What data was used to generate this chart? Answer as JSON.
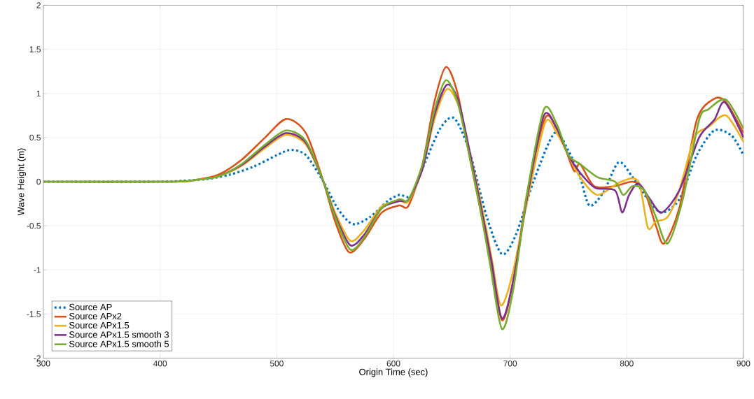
{
  "chart_data": {
    "type": "line",
    "xlabel": "Origin Time (sec)",
    "ylabel": "Wave Height (m)",
    "xlim": [
      300,
      900
    ],
    "ylim": [
      -2,
      2
    ],
    "xticks": [
      300,
      400,
      500,
      600,
      700,
      800,
      900
    ],
    "yticks": [
      -2,
      -1.5,
      -1,
      -0.5,
      0,
      0.5,
      1,
      1.5,
      2
    ],
    "grid": true,
    "legend": "bottom left",
    "series": [
      {
        "name": "Source AP",
        "color": "#0072bd",
        "line_style": "dotted",
        "x": [
          300,
          400,
          420,
          440,
          460,
          480,
          500,
          512,
          525,
          540,
          552,
          565,
          580,
          595,
          605,
          615,
          625,
          640,
          652,
          665,
          680,
          693,
          705,
          720,
          738,
          750,
          760,
          768,
          780,
          793,
          805,
          818,
          830,
          845,
          860,
          875,
          890,
          900
        ],
        "values": [
          0,
          0,
          0.01,
          0.03,
          0.08,
          0.17,
          0.3,
          0.36,
          0.3,
          0,
          -0.3,
          -0.48,
          -0.4,
          -0.22,
          -0.15,
          -0.16,
          0.15,
          0.6,
          0.72,
          0.35,
          -0.4,
          -0.82,
          -0.6,
          0,
          0.55,
          0.35,
          0.05,
          -0.27,
          -0.12,
          0.22,
          0.05,
          -0.2,
          -0.35,
          -0.2,
          0.3,
          0.58,
          0.52,
          0.3
        ]
      },
      {
        "name": "Source APx2",
        "color": "#d95319",
        "line_style": "solid",
        "x": [
          300,
          410,
          430,
          450,
          470,
          490,
          508,
          525,
          540,
          550,
          562,
          575,
          590,
          605,
          613,
          625,
          635,
          645,
          655,
          665,
          675,
          683,
          693,
          703,
          715,
          730,
          740,
          748,
          755,
          760,
          772,
          790,
          805,
          815,
          825,
          832,
          845,
          860,
          875,
          885,
          900
        ],
        "values": [
          0,
          0,
          0.02,
          0.08,
          0.25,
          0.5,
          0.71,
          0.55,
          0,
          -0.45,
          -0.8,
          -0.65,
          -0.35,
          -0.27,
          -0.27,
          0.2,
          0.9,
          1.3,
          1.0,
          0.3,
          -0.35,
          -0.9,
          -1.57,
          -1.1,
          -0.1,
          0.72,
          0.6,
          0.35,
          0.12,
          0.2,
          -0.05,
          -0.05,
          0,
          -0.1,
          -0.5,
          -0.7,
          -0.3,
          0.7,
          0.94,
          0.9,
          0.55
        ]
      },
      {
        "name": "Source APx1.5",
        "color": "#edb120",
        "line_style": "solid",
        "x": [
          430,
          450,
          470,
          490,
          508,
          525,
          540,
          550,
          563,
          575,
          590,
          605,
          613,
          625,
          635,
          646,
          656,
          666,
          676,
          684,
          692,
          702,
          715,
          730,
          740,
          750,
          760,
          775,
          795,
          810,
          818,
          825,
          835,
          845,
          858,
          870,
          885,
          900
        ],
        "values": [
          0.02,
          0.06,
          0.18,
          0.38,
          0.53,
          0.42,
          0,
          -0.35,
          -0.67,
          -0.55,
          -0.28,
          -0.22,
          -0.22,
          0.15,
          0.7,
          1.05,
          0.85,
          0.3,
          -0.3,
          -0.85,
          -1.4,
          -1.05,
          -0.2,
          0.67,
          0.55,
          0.3,
          0.05,
          -0.15,
          0,
          0,
          -0.52,
          -0.45,
          -0.4,
          -0.1,
          0.5,
          0.62,
          0.75,
          0.45
        ]
      },
      {
        "name": "Source APx1.5 smooth 3",
        "color": "#7e2f8e",
        "line_style": "solid",
        "x": [
          450,
          470,
          490,
          508,
          525,
          540,
          550,
          563,
          575,
          590,
          605,
          613,
          625,
          635,
          646,
          656,
          666,
          676,
          684,
          693,
          703,
          715,
          729,
          740,
          750,
          760,
          773,
          790,
          796,
          802,
          810,
          820,
          830,
          845,
          862,
          875,
          884,
          900
        ],
        "values": [
          0.06,
          0.19,
          0.4,
          0.55,
          0.44,
          0,
          -0.38,
          -0.72,
          -0.6,
          -0.3,
          -0.22,
          -0.2,
          0.15,
          0.75,
          1.1,
          0.9,
          0.3,
          -0.35,
          -0.9,
          -1.55,
          -1.1,
          -0.15,
          0.75,
          0.6,
          0.3,
          0.1,
          -0.07,
          -0.1,
          -0.35,
          -0.15,
          -0.02,
          -0.2,
          -0.35,
          -0.1,
          0.5,
          0.7,
          0.9,
          0.5
        ]
      },
      {
        "name": "Source APx1.5 smooth 5",
        "color": "#77ac30",
        "line_style": "solid",
        "x": [
          300,
          410,
          430,
          450,
          470,
          490,
          508,
          525,
          540,
          550,
          563,
          575,
          590,
          605,
          613,
          625,
          635,
          645,
          655,
          665,
          675,
          683,
          693,
          703,
          715,
          729,
          740,
          750,
          760,
          775,
          790,
          797,
          805,
          815,
          825,
          835,
          848,
          862,
          870,
          885,
          900
        ],
        "values": [
          0,
          0,
          0.02,
          0.06,
          0.2,
          0.42,
          0.58,
          0.46,
          0,
          -0.4,
          -0.77,
          -0.63,
          -0.3,
          -0.2,
          -0.2,
          0.2,
          0.8,
          1.15,
          0.9,
          0.3,
          -0.35,
          -0.95,
          -1.67,
          -1.2,
          -0.1,
          0.82,
          0.65,
          0.3,
          0.2,
          0.05,
          0,
          -0.15,
          -0.05,
          -0.1,
          -0.4,
          -0.7,
          -0.2,
          0.7,
          0.82,
          0.93,
          0.6
        ]
      }
    ]
  }
}
